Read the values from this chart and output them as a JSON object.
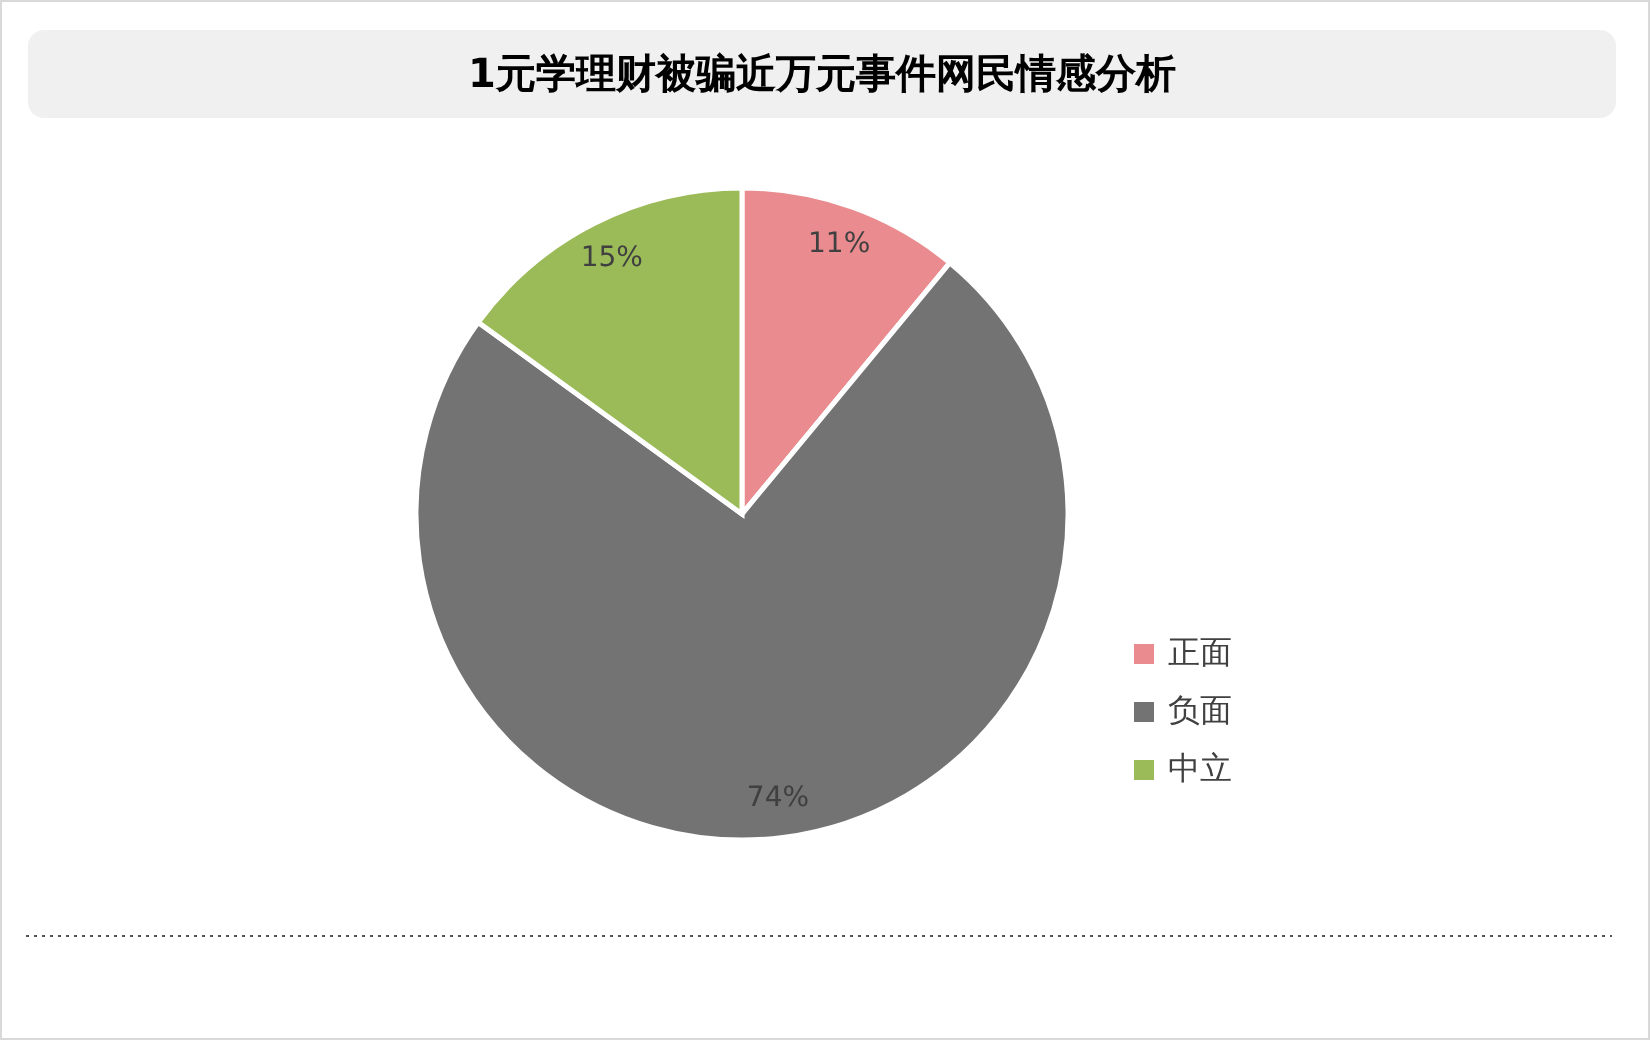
{
  "chart_data": {
    "type": "pie",
    "title": "1元学理财被骗近万元事件网民情感分析",
    "categories": [
      "正面",
      "负面",
      "中立"
    ],
    "values": [
      11,
      74,
      15
    ],
    "colors": [
      "#e98b8f",
      "#737373",
      "#9bbb59"
    ],
    "value_labels": [
      "11%",
      "74%",
      "15%"
    ],
    "legend": "right"
  }
}
